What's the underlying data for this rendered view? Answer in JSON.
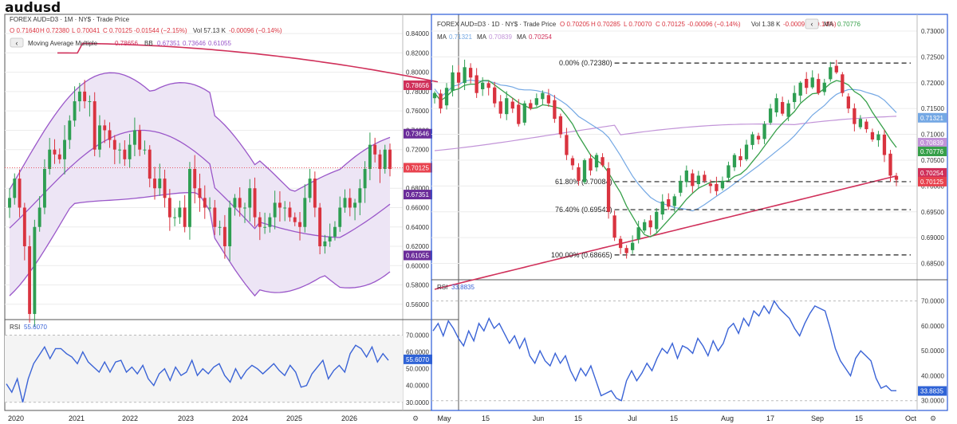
{
  "page_title": "audusd",
  "colors": {
    "up": "#2e9e52",
    "down": "#d9333f",
    "bb": "#9a57c9",
    "mam": "#d0305a",
    "rsi": "#3a63d6",
    "ma1": "#74a8e4",
    "ma2": "#c294d8",
    "ma3": "#d0305a",
    "ma_green": "#37a04a",
    "price_label": "#e8434f",
    "rsi_label": "#2f63d6",
    "bb_dark": "#6a2b99"
  },
  "left": {
    "header": {
      "symbol": "FOREX AUD=D3 · 1M · NY$ · Trade Price",
      "o": "O 0.71640",
      "h": "H 0.72380",
      "l": "L 0.70041",
      "c": "C 0.70125",
      "chg": "-0.01544 (−2.15%)",
      "vol": "Vol 57.13 K",
      "vol_chg": "-0.00096 (−0.14%)"
    },
    "indicator": {
      "name": "Moving Average Multiple",
      "mam_val": "0.78656",
      "bb_label": "BB",
      "bb_vals": [
        "0.67351",
        "0.73646",
        "0.61055"
      ]
    },
    "y_ticks": [
      "0.84000",
      "0.82000",
      "0.80000",
      "0.78000",
      "0.76000",
      "0.74000",
      "0.72000",
      "0.70000",
      "0.68000",
      "0.66000",
      "0.64000",
      "0.62000",
      "0.60000",
      "0.58000",
      "0.56000"
    ],
    "price_labels": [
      {
        "v": "0.78656",
        "price": 0.78656,
        "kind": "mam"
      },
      {
        "v": "0.73646",
        "price": 0.73646,
        "kind": "bb_dark"
      },
      {
        "v": "0.70125",
        "price": 0.70125,
        "kind": "price"
      },
      {
        "v": "0.67351",
        "price": 0.67351,
        "kind": "bb_dark"
      },
      {
        "v": "0.61055",
        "price": 0.61055,
        "kind": "bb_dark"
      }
    ],
    "rsi": {
      "label": "RSI",
      "value": "55.6070",
      "y_ticks": [
        "70.0000",
        "60.0000",
        "50.0000",
        "40.0000",
        "30.0000"
      ],
      "values": [
        41,
        36,
        44,
        30,
        44,
        53,
        58,
        63,
        56,
        62,
        62,
        59,
        57,
        53,
        60,
        54,
        51,
        48,
        54,
        48,
        54,
        55,
        48,
        51,
        47,
        52,
        44,
        40,
        47,
        50,
        43,
        51,
        46,
        48,
        55,
        46,
        50,
        47,
        51,
        53,
        46,
        42,
        50,
        44,
        49,
        52,
        50,
        47,
        50,
        53,
        49,
        46,
        52,
        48,
        39,
        40,
        47,
        51,
        55,
        44,
        49,
        52,
        48,
        59,
        64,
        62,
        57,
        63,
        54,
        59,
        55
      ]
    },
    "x_ticks": [
      "2020",
      "2021",
      "2022",
      "2023",
      "2024",
      "2025",
      "2026"
    ],
    "corner_icon": "⚙"
  },
  "right": {
    "header": {
      "symbol": "FOREX AUD=D3 · 1D · NY$ · Trade Price",
      "o": "O 0.70205",
      "h": "H 0.70285",
      "l": "L 0.70070",
      "c": "C 0.70125",
      "chg": "-0.00096 (−0.14%)",
      "vol": "Vol 1.38 K",
      "vol_chg": "-0.00096 (−0.14%)",
      "ma_green_label": "MA",
      "ma_green_val": "0.70776",
      "ma_labels": [
        {
          "label": "MA",
          "val": "0.71321"
        },
        {
          "label": "MA",
          "val": "0.70839"
        },
        {
          "label": "MA",
          "val": "0.70254"
        }
      ]
    },
    "y_ticks": [
      "0.73000",
      "0.72500",
      "0.72000",
      "0.71500",
      "0.71000",
      "0.70500",
      "0.70000",
      "0.69500",
      "0.69000",
      "0.68500"
    ],
    "price_labels": [
      {
        "v": "0.71321",
        "price": 0.71321,
        "kind": "ma1"
      },
      {
        "v": "0.70839",
        "price": 0.70839,
        "kind": "ma2"
      },
      {
        "v": "0.70776",
        "price": 0.70776,
        "kind": "ma_green"
      },
      {
        "v": "0.70254",
        "price": 0.70254,
        "kind": "ma3"
      },
      {
        "v": "0.70125",
        "price": 0.70125,
        "kind": "price"
      }
    ],
    "fib": [
      {
        "label": "0.00% (0.72380)",
        "price": 0.7238
      },
      {
        "label": "61.80% (0.70084)",
        "price": 0.70084
      },
      {
        "label": "76.40% (0.69542)",
        "price": 0.69542
      },
      {
        "label": "100.00% (0.68665)",
        "price": 0.68665
      }
    ],
    "rsi": {
      "label": "RSI",
      "value": "33.8835",
      "y_ticks": [
        "70.0000",
        "60.0000",
        "50.0000",
        "40.0000",
        "30.0000"
      ],
      "values": [
        58,
        61,
        56,
        62,
        59,
        55,
        52,
        58,
        54,
        61,
        58,
        63,
        59,
        61,
        57,
        53,
        56,
        51,
        55,
        48,
        45,
        50,
        46,
        44,
        49,
        45,
        48,
        42,
        38,
        43,
        40,
        44,
        38,
        32,
        33,
        34,
        31,
        30,
        38,
        42,
        38,
        41,
        45,
        42,
        47,
        51,
        49,
        53,
        47,
        52,
        51,
        49,
        55,
        52,
        48,
        54,
        50,
        53,
        59,
        61,
        57,
        63,
        60,
        66,
        64,
        68,
        65,
        70,
        67,
        65,
        63,
        59,
        56,
        61,
        65,
        68,
        67,
        66,
        59,
        51,
        46,
        43,
        40,
        47,
        50,
        48,
        46,
        39,
        35,
        36,
        34,
        34
      ]
    },
    "x_ticks": [
      "May",
      "15",
      "Jun",
      "15",
      "Jul",
      "15",
      "Aug",
      "17",
      "Sep",
      "15",
      "Oct"
    ],
    "corner_icon": "⚙"
  },
  "chart_data": [
    {
      "type": "candlestick",
      "title": "FOREX AUD=D3 · 1M · NY$ · Trade Price",
      "x_range": [
        "2020",
        "2026"
      ],
      "ylim": [
        0.545,
        0.85
      ],
      "close_series": [
        0.67,
        0.69,
        0.66,
        0.62,
        0.55,
        0.64,
        0.66,
        0.7,
        0.72,
        0.715,
        0.71,
        0.73,
        0.75,
        0.77,
        0.78,
        0.77,
        0.77,
        0.72,
        0.745,
        0.74,
        0.73,
        0.72,
        0.72,
        0.71,
        0.725,
        0.74,
        0.72,
        0.72,
        0.69,
        0.68,
        0.69,
        0.67,
        0.65,
        0.65,
        0.66,
        0.64,
        0.7,
        0.68,
        0.67,
        0.66,
        0.66,
        0.64,
        0.64,
        0.62,
        0.66,
        0.67,
        0.66,
        0.66,
        0.68,
        0.65,
        0.64,
        0.64,
        0.65,
        0.665,
        0.66,
        0.66,
        0.65,
        0.645,
        0.64,
        0.67,
        0.69,
        0.66,
        0.62,
        0.625,
        0.63,
        0.64,
        0.66,
        0.67,
        0.66,
        0.665,
        0.68,
        0.7,
        0.725,
        0.715,
        0.7,
        0.72,
        0.7
      ],
      "overlays": [
        {
          "name": "Moving Average Multiple",
          "last": 0.78656
        },
        {
          "name": "BB middle",
          "last": 0.67351
        },
        {
          "name": "BB upper",
          "last": 0.73646
        },
        {
          "name": "BB lower",
          "last": 0.61055
        }
      ]
    },
    {
      "type": "line",
      "title": "RSI",
      "ylim": [
        28,
        75
      ],
      "last": 55.607
    },
    {
      "type": "candlestick",
      "title": "FOREX AUD=D3 · 1D · NY$ · Trade Price",
      "x_range": [
        "May",
        "Oct"
      ],
      "ylim": [
        0.682,
        0.732
      ],
      "close_series": [
        0.718,
        0.715,
        0.719,
        0.722,
        0.72,
        0.723,
        0.721,
        0.718,
        0.72,
        0.719,
        0.716,
        0.714,
        0.717,
        0.715,
        0.712,
        0.716,
        0.715,
        0.717,
        0.718,
        0.716,
        0.713,
        0.71,
        0.706,
        0.704,
        0.701,
        0.705,
        0.703,
        0.706,
        0.704,
        0.695,
        0.69,
        0.688,
        0.687,
        0.689,
        0.692,
        0.693,
        0.692,
        0.695,
        0.697,
        0.696,
        0.698,
        0.701,
        0.703,
        0.7,
        0.702,
        0.701,
        0.7,
        0.699,
        0.701,
        0.704,
        0.706,
        0.705,
        0.708,
        0.71,
        0.709,
        0.712,
        0.715,
        0.717,
        0.714,
        0.716,
        0.718,
        0.72,
        0.719,
        0.721,
        0.718,
        0.72,
        0.723,
        0.722,
        0.718,
        0.715,
        0.712,
        0.713,
        0.711,
        0.709,
        0.71,
        0.706,
        0.702,
        0.7012
      ],
      "overlays": [
        {
          "name": "MA (green)",
          "last": 0.70776
        },
        {
          "name": "MA (blue)",
          "last": 0.71321
        },
        {
          "name": "MA (purple)",
          "last": 0.70839
        },
        {
          "name": "MA (red)",
          "last": 0.70254
        }
      ],
      "fibonacci": [
        {
          "level": "0.00%",
          "price": 0.7238
        },
        {
          "level": "61.80%",
          "price": 0.70084
        },
        {
          "level": "76.40%",
          "price": 0.69542
        },
        {
          "level": "100.00%",
          "price": 0.68665
        }
      ]
    },
    {
      "type": "line",
      "title": "RSI",
      "ylim": [
        28,
        75
      ],
      "last": 33.8835
    }
  ]
}
